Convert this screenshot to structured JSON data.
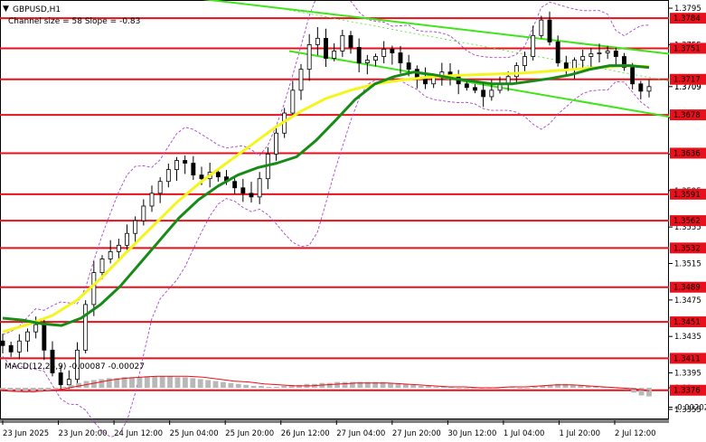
{
  "header": {
    "symbol_line": "GBPUSD,H1",
    "channel_line": "Channel size = 58 Slope = -0.83"
  },
  "macd": {
    "label": "MACD(12,26,9) -0.00087 -0.00027"
  },
  "colors": {
    "level_line": "#e8101a",
    "price_tag": "#e8101a",
    "ema_fast": "#188a18",
    "ema_slow": "#f5f51e",
    "channel": "#3fe51a",
    "bollinger": "#a845c8",
    "candle": "#000000",
    "macd_hist": "#b8b8b8",
    "macd_signal": "#e8101a"
  },
  "chart_data": [
    {
      "type": "candlestick",
      "title": "GBPUSD,H1",
      "ylim": [
        1.3345,
        1.3802
      ],
      "x_ticks": [
        "23 Jun 2025",
        "23 Jun 20:00",
        "24 Jun 12:00",
        "25 Jun 04:00",
        "25 Jun 20:00",
        "26 Jun 12:00",
        "27 Jun 04:00",
        "27 Jun 20:00",
        "30 Jun 12:00",
        "1 Jul 04:00",
        "1 Jul 20:00",
        "2 Jul 12:00"
      ],
      "y_ticks": [
        "1.3795",
        "1.3755",
        "1.3709",
        "1.3675",
        "1.3635",
        "1.3595",
        "1.3555",
        "1.3515",
        "1.3475",
        "1.3435",
        "1.3395",
        "1.3355"
      ],
      "current_price": "1.3709",
      "levels": [
        {
          "value": 1.3784,
          "label": "1.3784"
        },
        {
          "value": 1.3751,
          "label": "1.3751"
        },
        {
          "value": 1.3717,
          "label": "1.3717"
        },
        {
          "value": 1.3678,
          "label": "1.3678"
        },
        {
          "value": 1.3636,
          "label": "1.3636"
        },
        {
          "value": 1.3591,
          "label": "1.3591"
        },
        {
          "value": 1.3562,
          "label": "1.3562"
        },
        {
          "value": 1.3532,
          "label": "1.3532"
        },
        {
          "value": 1.3489,
          "label": "1.3489"
        },
        {
          "value": 1.3451,
          "label": "1.3451"
        },
        {
          "value": 1.3411,
          "label": "1.3411"
        },
        {
          "value": 1.3376,
          "label": "1.3376"
        }
      ],
      "close_path": [
        1.3425,
        1.3418,
        1.343,
        1.344,
        1.3448,
        1.342,
        1.3395,
        1.3382,
        1.3388,
        1.342,
        1.347,
        1.3505,
        1.352,
        1.3528,
        1.3535,
        1.3548,
        1.3562,
        1.3578,
        1.3592,
        1.3605,
        1.3618,
        1.3628,
        1.3625,
        1.3612,
        1.3608,
        1.3615,
        1.361,
        1.3605,
        1.3598,
        1.3592,
        1.3588,
        1.3608,
        1.3635,
        1.3658,
        1.368,
        1.3705,
        1.3728,
        1.3755,
        1.3762,
        1.374,
        1.3748,
        1.3765,
        1.3752,
        1.3735,
        1.3738,
        1.3742,
        1.375,
        1.3746,
        1.3735,
        1.3728,
        1.3718,
        1.3712,
        1.372,
        1.3725,
        1.3722,
        1.3712,
        1.3708,
        1.3705,
        1.3698,
        1.3705,
        1.3712,
        1.372,
        1.3732,
        1.3742,
        1.3765,
        1.3782,
        1.3758,
        1.3735,
        1.3728,
        1.3738,
        1.3742,
        1.3745,
        1.3746,
        1.3748,
        1.3742,
        1.373,
        1.3712,
        1.3704,
        1.3709
      ],
      "ema_fast_path": [
        1.3455,
        1.3453,
        1.3449,
        1.3447,
        1.3455,
        1.347,
        1.349,
        1.3515,
        1.354,
        1.3565,
        1.3585,
        1.36,
        1.3612,
        1.362,
        1.3625,
        1.3632,
        1.365,
        1.3672,
        1.3695,
        1.3712,
        1.372,
        1.3725,
        1.3722,
        1.3718,
        1.3715,
        1.3712,
        1.3712,
        1.3715,
        1.3718,
        1.3722,
        1.3728,
        1.3732,
        1.3732,
        1.373
      ],
      "ema_slow_path": [
        1.344,
        1.3448,
        1.3458,
        1.3475,
        1.35,
        1.3528,
        1.3555,
        1.3582,
        1.3605,
        1.3625,
        1.3645,
        1.3665,
        1.3682,
        1.3696,
        1.3705,
        1.3712,
        1.3716,
        1.3719,
        1.3721,
        1.3722,
        1.3723,
        1.3724,
        1.3726,
        1.3728,
        1.373,
        1.3732,
        1.3731
      ],
      "channel": {
        "upper": [
          1.3818,
          1.3745
        ],
        "lower": [
          1.3748,
          1.3676
        ]
      }
    },
    {
      "type": "bar",
      "title": "MACD(12,26,9)",
      "ylim": [
        -0.0031,
        0.0016
      ],
      "y_ticks": [
        "0.00",
        "-0.00202"
      ],
      "histogram": [
        -0.0002,
        -0.0003,
        -0.0004,
        -0.0005,
        -0.0005,
        -0.0004,
        -0.0003,
        -0.0001,
        0.0001,
        0.0003,
        0.0005,
        0.0007,
        0.0008,
        0.0009,
        0.001,
        0.001,
        0.0011,
        0.0011,
        0.0011,
        0.0012,
        0.0012,
        0.0012,
        0.0012,
        0.0011,
        0.0011,
        0.001,
        0.0009,
        0.0008,
        0.0007,
        0.0006,
        0.0005,
        0.0004,
        0.0003,
        0.0002,
        0.0002,
        0.0001,
        0.0001,
        0.0002,
        0.0003,
        0.0003,
        0.0004,
        0.0004,
        0.0005,
        0.0005,
        0.0006,
        0.0006,
        0.0006,
        0.0006,
        0.0006,
        0.0006,
        0.0006,
        0.0005,
        0.0005,
        0.0004,
        0.0003,
        0.0002,
        0.0002,
        0.0001,
        0.0001,
        0.0001,
        0.0,
        0.0,
        0.0,
        0.0,
        0.0,
        0.0,
        0.0001,
        0.0001,
        0.0,
        0.0,
        0.0001,
        0.0002,
        0.0003,
        0.0004,
        0.0004,
        0.0003,
        0.0003,
        0.0002,
        0.0001,
        0.0001,
        0.0001,
        0.0,
        -0.0002,
        -0.0005,
        -0.0008,
        -0.0009
      ],
      "signal": [
        -0.0003,
        -0.0004,
        -0.0004,
        -0.0003,
        -0.0001,
        0.0002,
        0.0005,
        0.0008,
        0.001,
        0.0011,
        0.0012,
        0.0012,
        0.0012,
        0.0011,
        0.0009,
        0.0007,
        0.0006,
        0.0004,
        0.0003,
        0.0002,
        0.0002,
        0.0003,
        0.0004,
        0.0005,
        0.0005,
        0.0005,
        0.0004,
        0.0003,
        0.0002,
        0.0001,
        0.0001,
        0.0,
        0.0,
        0.0001,
        0.0001,
        0.0002,
        0.0003,
        0.0003,
        0.0002,
        0.0001,
        0.0,
        -0.0001,
        -0.0003
      ]
    }
  ]
}
